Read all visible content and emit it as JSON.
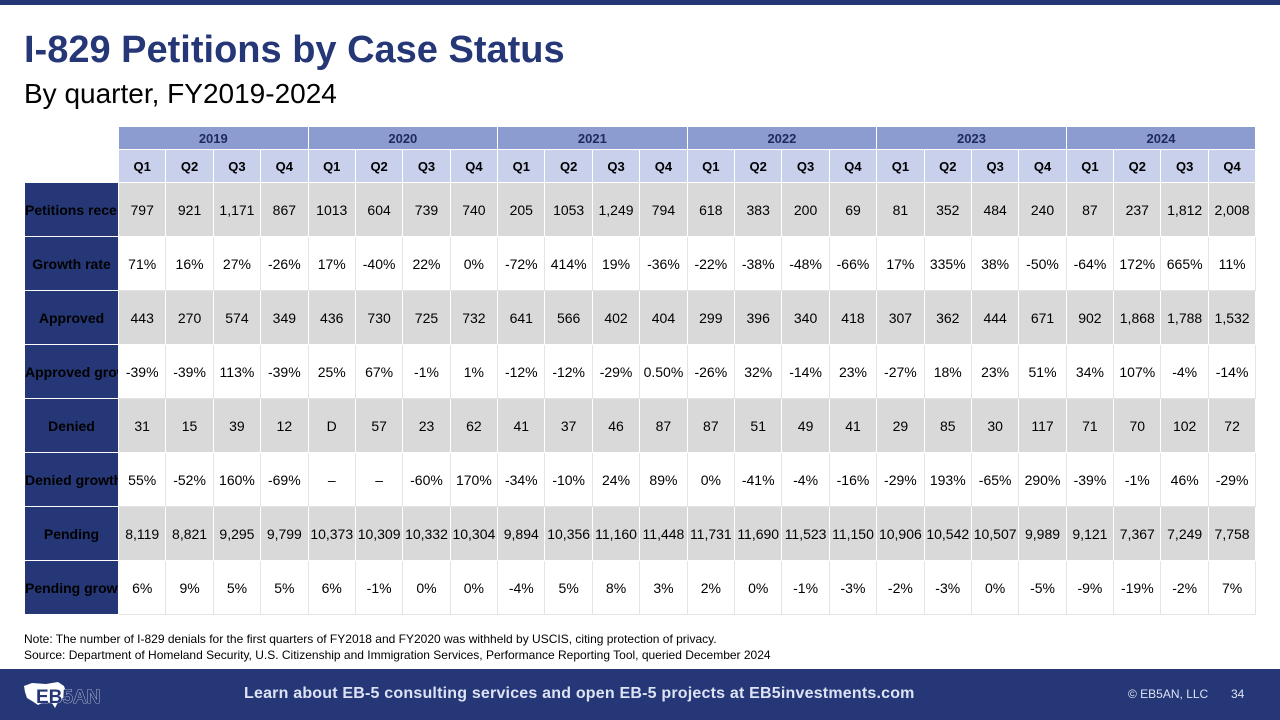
{
  "slide": {
    "title": "I-829 Petitions by Case Status",
    "subtitle": "By quarter, FY2019-2024"
  },
  "table": {
    "years": [
      "2019",
      "2020",
      "2021",
      "2022",
      "2023",
      "2024"
    ],
    "quarters": [
      "Q1",
      "Q2",
      "Q3",
      "Q4"
    ],
    "rows": [
      {
        "label": "Petitions received",
        "values": [
          "797",
          "921",
          "1,171",
          "867",
          "1013",
          "604",
          "739",
          "740",
          "205",
          "1053",
          "1,249",
          "794",
          "618",
          "383",
          "200",
          "69",
          "81",
          "352",
          "484",
          "240",
          "87",
          "237",
          "1,812",
          "2,008"
        ]
      },
      {
        "label": "Growth rate",
        "values": [
          "71%",
          "16%",
          "27%",
          "-26%",
          "17%",
          "-40%",
          "22%",
          "0%",
          "-72%",
          "414%",
          "19%",
          "-36%",
          "-22%",
          "-38%",
          "-48%",
          "-66%",
          "17%",
          "335%",
          "38%",
          "-50%",
          "-64%",
          "172%",
          "665%",
          "11%"
        ]
      },
      {
        "label": "Approved",
        "values": [
          "443",
          "270",
          "574",
          "349",
          "436",
          "730",
          "725",
          "732",
          "641",
          "566",
          "402",
          "404",
          "299",
          "396",
          "340",
          "418",
          "307",
          "362",
          "444",
          "671",
          "902",
          "1,868",
          "1,788",
          "1,532"
        ]
      },
      {
        "label": "Approved growth rate",
        "values": [
          "-39%",
          "-39%",
          "113%",
          "-39%",
          "25%",
          "67%",
          "-1%",
          "1%",
          "-12%",
          "-12%",
          "-29%",
          "0.50%",
          "-26%",
          "32%",
          "-14%",
          "23%",
          "-27%",
          "18%",
          "23%",
          "51%",
          "34%",
          "107%",
          "-4%",
          "-14%"
        ]
      },
      {
        "label": "Denied",
        "values": [
          "31",
          "15",
          "39",
          "12",
          "D",
          "57",
          "23",
          "62",
          "41",
          "37",
          "46",
          "87",
          "87",
          "51",
          "49",
          "41",
          "29",
          "85",
          "30",
          "117",
          "71",
          "70",
          "102",
          "72"
        ]
      },
      {
        "label": "Denied growth rate",
        "values": [
          "55%",
          "-52%",
          "160%",
          "-69%",
          "–",
          "–",
          "-60%",
          "170%",
          "-34%",
          "-10%",
          "24%",
          "89%",
          "0%",
          "-41%",
          "-4%",
          "-16%",
          "-29%",
          "193%",
          "-65%",
          "290%",
          "-39%",
          "-1%",
          "46%",
          "-29%"
        ]
      },
      {
        "label": "Pending",
        "values": [
          "8,119",
          "8,821",
          "9,295",
          "9,799",
          "10,373",
          "10,309",
          "10,332",
          "10,304",
          "9,894",
          "10,356",
          "11,160",
          "11,448",
          "11,731",
          "11,690",
          "11,523",
          "11,150",
          "10,906",
          "10,542",
          "10,507",
          "9,989",
          "9,121",
          "7,367",
          "7,249",
          "7,758"
        ]
      },
      {
        "label": "Pending growth rate",
        "values": [
          "6%",
          "9%",
          "5%",
          "5%",
          "6%",
          "-1%",
          "0%",
          "0%",
          "-4%",
          "5%",
          "8%",
          "3%",
          "2%",
          "0%",
          "-1%",
          "-3%",
          "-2%",
          "-3%",
          "0%",
          "-5%",
          "-9%",
          "-19%",
          "-2%",
          "7%"
        ]
      }
    ]
  },
  "notes": {
    "note": "Note: The number of I-829 denials for the first quarters of FY2018 and FY2020 was withheld by USCIS, citing protection of privacy.",
    "source": "Source: Department of Homeland Security, U.S. Citizenship and Immigration Services, Performance Reporting Tool, queried December 2024"
  },
  "footer": {
    "logo_text": "EB5AN",
    "message": "Learn about EB-5 consulting services and open EB-5 projects at EB5investments.com",
    "copyright": "© EB5AN, LLC",
    "page_number": "34"
  },
  "colors": {
    "brand_navy": "#253776",
    "year_header": "#8c9bd0",
    "quarter_header": "#c8d0ec",
    "shaded_row": "#d9d9d9"
  }
}
